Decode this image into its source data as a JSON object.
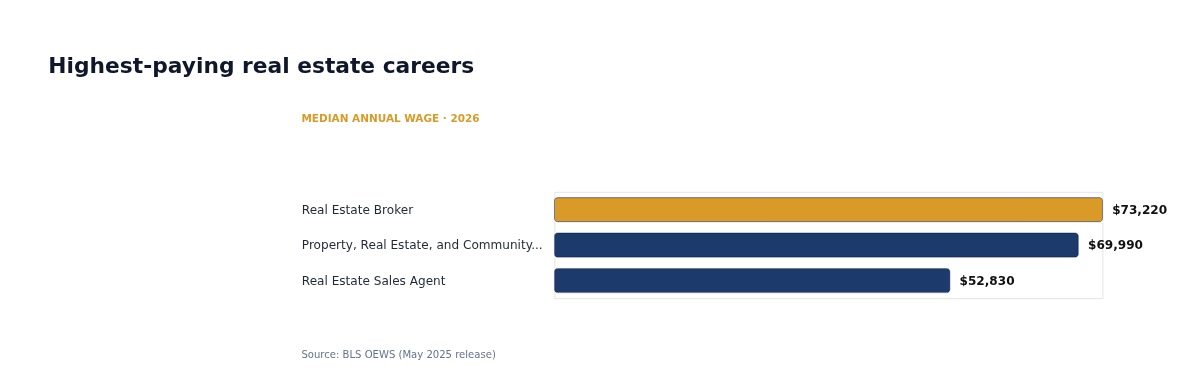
{
  "chart_data": {
    "type": "bar",
    "orientation": "horizontal",
    "title": "Highest-paying real estate careers",
    "subtitle": "MEDIAN ANNUAL WAGE · 2026",
    "categories": [
      "Real Estate Broker",
      "Property, Real Estate, and Community...",
      "Real Estate Sales Agent"
    ],
    "values": [
      73220,
      69990,
      52830
    ],
    "value_labels": [
      "$73,220",
      "$69,990",
      "$52,830"
    ],
    "colors": [
      "#d99a27",
      "#1c3a6b",
      "#1c3a6b"
    ],
    "annotations": [
      "Source: BLS OEWS (May 2025 release)"
    ]
  }
}
